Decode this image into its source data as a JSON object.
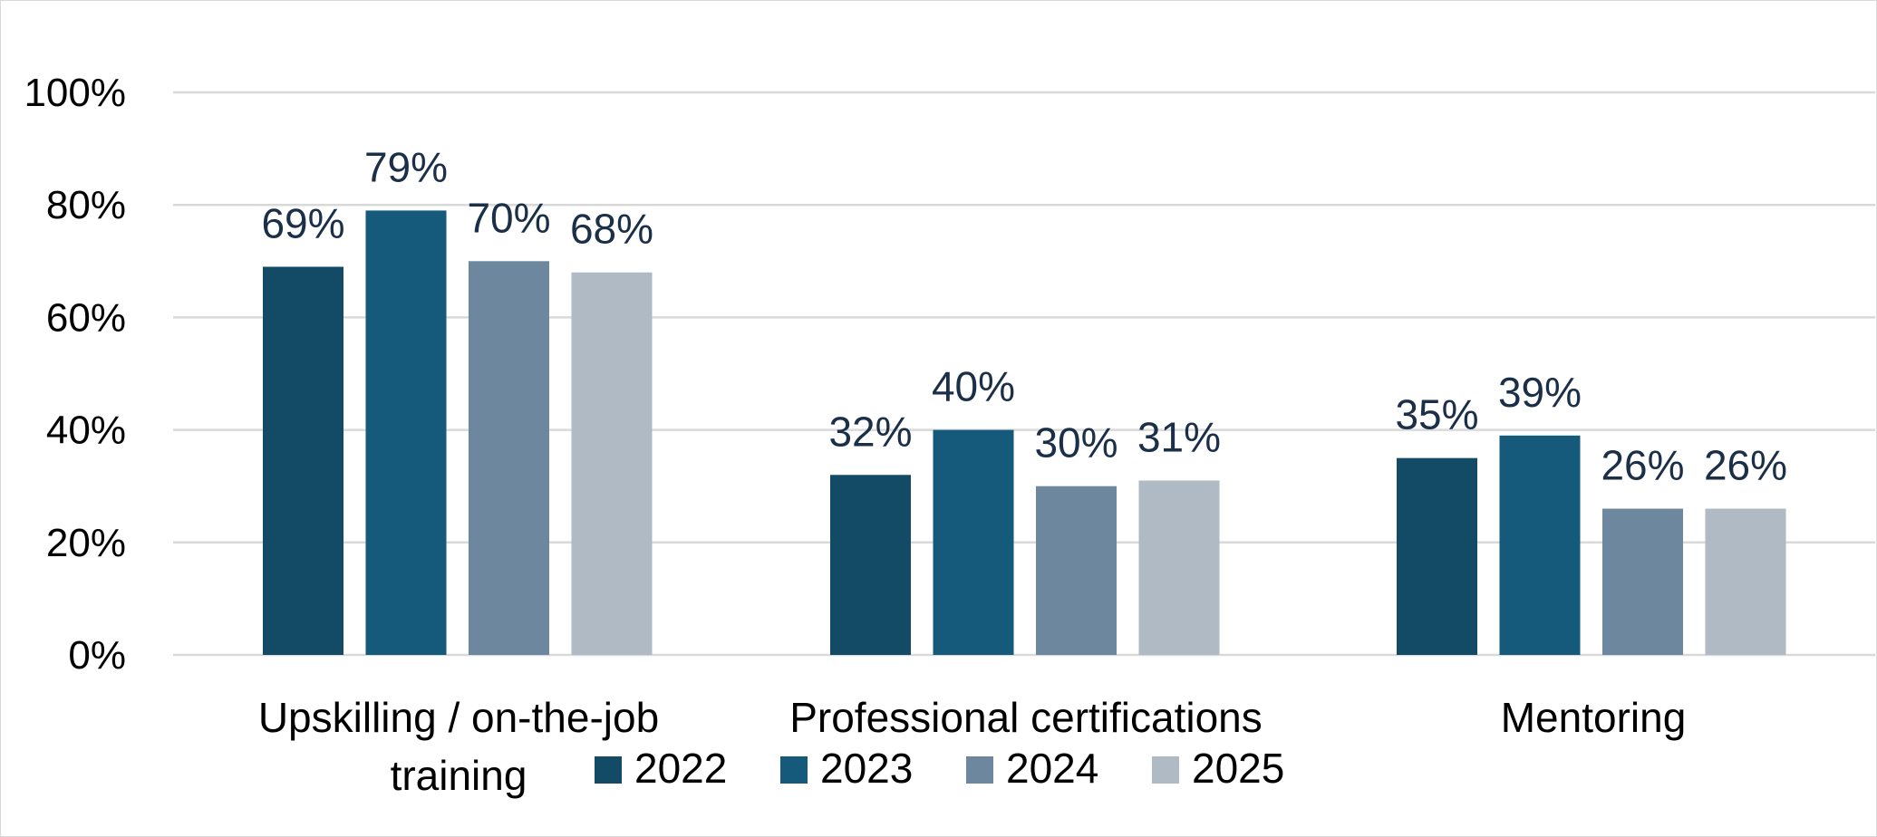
{
  "chart_data": {
    "type": "bar",
    "categories": [
      [
        "Upskilling / on-the-job",
        "training"
      ],
      [
        "Professional certifications"
      ],
      [
        "Mentoring"
      ]
    ],
    "series": [
      {
        "name": "2022",
        "color": "#134a66",
        "values": [
          69,
          32,
          35
        ],
        "labels": [
          "69%",
          "32%",
          "35%"
        ]
      },
      {
        "name": "2023",
        "color": "#155a7a",
        "values": [
          79,
          40,
          39
        ],
        "labels": [
          "79%",
          "40%",
          "39%"
        ]
      },
      {
        "name": "2024",
        "color": "#6d889e",
        "values": [
          70,
          30,
          26
        ],
        "labels": [
          "70%",
          "30%",
          "26%"
        ]
      },
      {
        "name": "2025",
        "color": "#b0bac5",
        "values": [
          68,
          31,
          26
        ],
        "labels": [
          "68%",
          "31%",
          "26%"
        ]
      }
    ],
    "yticks": [
      0,
      20,
      40,
      60,
      80,
      100
    ],
    "ytick_labels": [
      "0%",
      "20%",
      "40%",
      "60%",
      "80%",
      "100%"
    ],
    "ylim": [
      0,
      100
    ],
    "grid": true,
    "legend_position": "bottom"
  }
}
